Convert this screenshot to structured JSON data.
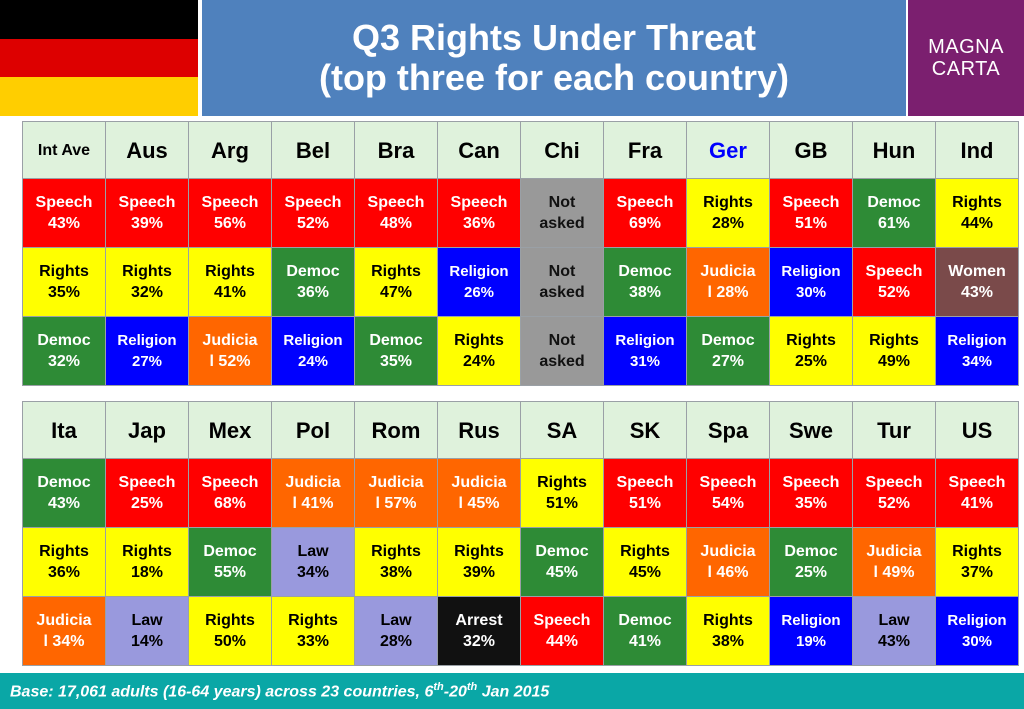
{
  "title": {
    "line1": "Q3 Rights Under Threat",
    "line2": "(top three for each country)"
  },
  "logo": {
    "line1": "MAGNA",
    "line2": "CARTA"
  },
  "flag_colors": [
    "#000000",
    "#dd0000",
    "#ffce00"
  ],
  "category_colors": {
    "Speech": "#ff0000",
    "Rights": "#ffff00",
    "Democ": "#2e8b36",
    "Religion": "#0000ff",
    "Judicial": "#ff6600",
    "Not asked": "#999999",
    "Women": "#7a4a4a",
    "Law": "#9999dd",
    "Arrest": "#111111"
  },
  "table1": {
    "columns": [
      {
        "header": "Int Ave",
        "cells": [
          [
            "Speech",
            "43%",
            "Speech"
          ],
          [
            "Rights",
            "35%",
            "Rights"
          ],
          [
            "Democ",
            "32%",
            "Democ"
          ]
        ]
      },
      {
        "header": "Aus",
        "cells": [
          [
            "Speech",
            "39%",
            "Speech"
          ],
          [
            "Rights",
            "32%",
            "Rights"
          ],
          [
            "Religion",
            "27%",
            "Religion"
          ]
        ]
      },
      {
        "header": "Arg",
        "cells": [
          [
            "Speech",
            "56%",
            "Speech"
          ],
          [
            "Rights",
            "41%",
            "Rights"
          ],
          [
            "Judicia",
            "l 52%",
            "Judicial"
          ]
        ]
      },
      {
        "header": "Bel",
        "cells": [
          [
            "Speech",
            "52%",
            "Speech"
          ],
          [
            "Democ",
            "36%",
            "Democ"
          ],
          [
            "Religion",
            "24%",
            "Religion"
          ]
        ]
      },
      {
        "header": "Bra",
        "cells": [
          [
            "Speech",
            "48%",
            "Speech"
          ],
          [
            "Rights",
            "47%",
            "Rights"
          ],
          [
            "Democ",
            "35%",
            "Democ"
          ]
        ]
      },
      {
        "header": "Can",
        "cells": [
          [
            "Speech",
            "36%",
            "Speech"
          ],
          [
            "Religion",
            "26%",
            "Religion"
          ],
          [
            "Rights",
            "24%",
            "Rights"
          ]
        ]
      },
      {
        "header": "Chi",
        "cells": [
          [
            "Not",
            "asked",
            "Not asked"
          ],
          [
            "Not",
            "asked",
            "Not asked"
          ],
          [
            "Not",
            "asked",
            "Not asked"
          ]
        ]
      },
      {
        "header": "Fra",
        "cells": [
          [
            "Speech",
            "69%",
            "Speech"
          ],
          [
            "Democ",
            "38%",
            "Democ"
          ],
          [
            "Religion",
            "31%",
            "Religion"
          ]
        ]
      },
      {
        "header": "Ger",
        "header_color": "#0000ff",
        "cells": [
          [
            "Rights",
            "28%",
            "Rights"
          ],
          [
            "Judicia",
            "l 28%",
            "Judicial"
          ],
          [
            "Democ",
            "27%",
            "Democ"
          ]
        ]
      },
      {
        "header": "GB",
        "cells": [
          [
            "Speech",
            "51%",
            "Speech"
          ],
          [
            "Religion",
            "30%",
            "Religion"
          ],
          [
            "Rights",
            "25%",
            "Rights"
          ]
        ]
      },
      {
        "header": "Hun",
        "cells": [
          [
            "Democ",
            "61%",
            "Democ"
          ],
          [
            "Speech",
            "52%",
            "Speech"
          ],
          [
            "Rights",
            "49%",
            "Rights"
          ]
        ]
      },
      {
        "header": "Ind",
        "cells": [
          [
            "Rights",
            "44%",
            "Rights"
          ],
          [
            "Women",
            "43%",
            "Women"
          ],
          [
            "Religion",
            "34%",
            "Religion"
          ]
        ]
      }
    ]
  },
  "table2": {
    "columns": [
      {
        "header": "Ita",
        "cells": [
          [
            "Democ",
            "43%",
            "Democ"
          ],
          [
            "Rights",
            "36%",
            "Rights"
          ],
          [
            "Judicia",
            "l 34%",
            "Judicial"
          ]
        ]
      },
      {
        "header": "Jap",
        "cells": [
          [
            "Speech",
            "25%",
            "Speech"
          ],
          [
            "Rights",
            "18%",
            "Rights"
          ],
          [
            "Law",
            "14%",
            "Law"
          ]
        ]
      },
      {
        "header": "Mex",
        "cells": [
          [
            "Speech",
            "68%",
            "Speech"
          ],
          [
            "Democ",
            "55%",
            "Democ"
          ],
          [
            "Rights",
            "50%",
            "Rights"
          ]
        ]
      },
      {
        "header": "Pol",
        "cells": [
          [
            "Judicia",
            "l 41%",
            "Judicial"
          ],
          [
            "Law",
            "34%",
            "Law"
          ],
          [
            "Rights",
            "33%",
            "Rights"
          ]
        ]
      },
      {
        "header": "Rom",
        "cells": [
          [
            "Judicia",
            "l 57%",
            "Judicial"
          ],
          [
            "Rights",
            "38%",
            "Rights"
          ],
          [
            "Law",
            "28%",
            "Law"
          ]
        ]
      },
      {
        "header": "Rus",
        "cells": [
          [
            "Judicia",
            "l 45%",
            "Judicial"
          ],
          [
            "Rights",
            "39%",
            "Rights"
          ],
          [
            "Arrest",
            "32%",
            "Arrest"
          ]
        ]
      },
      {
        "header": "SA",
        "cells": [
          [
            "Rights",
            "51%",
            "Rights"
          ],
          [
            "Democ",
            "45%",
            "Democ"
          ],
          [
            "Speech",
            "44%",
            "Speech"
          ]
        ]
      },
      {
        "header": "SK",
        "cells": [
          [
            "Speech",
            "51%",
            "Speech"
          ],
          [
            "Rights",
            "45%",
            "Rights"
          ],
          [
            "Democ",
            "41%",
            "Democ"
          ]
        ]
      },
      {
        "header": "Spa",
        "cells": [
          [
            "Speech",
            "54%",
            "Speech"
          ],
          [
            "Judicia",
            "l 46%",
            "Judicial"
          ],
          [
            "Rights",
            "38%",
            "Rights"
          ]
        ]
      },
      {
        "header": "Swe",
        "cells": [
          [
            "Speech",
            "35%",
            "Speech"
          ],
          [
            "Democ",
            "25%",
            "Democ"
          ],
          [
            "Religion",
            "19%",
            "Religion"
          ]
        ]
      },
      {
        "header": "Tur",
        "cells": [
          [
            "Speech",
            "52%",
            "Speech"
          ],
          [
            "Judicia",
            "l 49%",
            "Judicial"
          ],
          [
            "Law",
            "43%",
            "Law"
          ]
        ]
      },
      {
        "header": "US",
        "cells": [
          [
            "Speech",
            "41%",
            "Speech"
          ],
          [
            "Rights",
            "37%",
            "Rights"
          ],
          [
            "Religion",
            "30%",
            "Religion"
          ]
        ]
      }
    ]
  },
  "footer": {
    "prefix": "Base: 17,061 adults (16-64 years) across 23 countries, 6",
    "sup1": "th",
    "mid": "-20",
    "sup2": "th",
    "suffix": " Jan 2015"
  }
}
